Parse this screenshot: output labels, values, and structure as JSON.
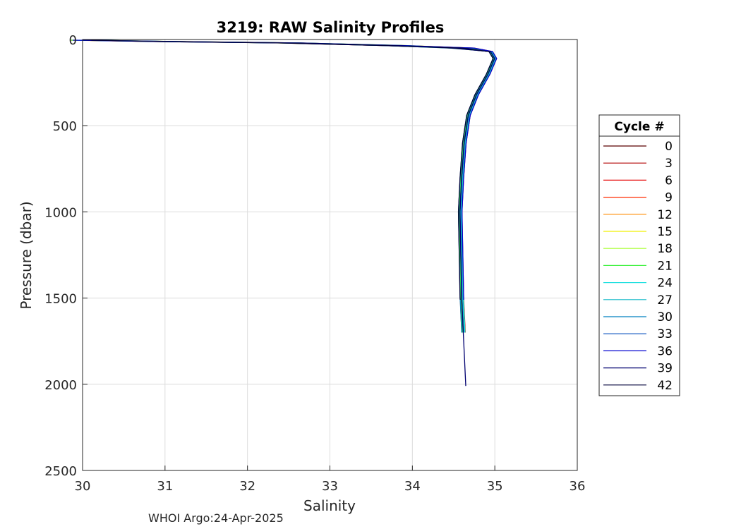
{
  "chart_data": {
    "type": "line",
    "title": "3219: RAW Salinity Profiles",
    "xlabel": "Salinity",
    "ylabel": "Pressure (dbar)",
    "xlim": [
      30,
      36
    ],
    "ylim": [
      0,
      2500
    ],
    "y_reversed": true,
    "grid": true,
    "xticks": [
      "30",
      "31",
      "32",
      "33",
      "34",
      "35",
      "36"
    ],
    "yticks": [
      "0",
      "500",
      "1000",
      "1500",
      "2000",
      "2500"
    ],
    "legend": {
      "title": "Cycle #",
      "placement": "right",
      "entries": [
        {
          "label": "0",
          "color": "#5a0000"
        },
        {
          "label": "3",
          "color": "#b30000"
        },
        {
          "label": "6",
          "color": "#e60000"
        },
        {
          "label": "9",
          "color": "#ff2a00"
        },
        {
          "label": "12",
          "color": "#ff8c00"
        },
        {
          "label": "15",
          "color": "#f0f000"
        },
        {
          "label": "18",
          "color": "#a8ff30"
        },
        {
          "label": "21",
          "color": "#3cf03c"
        },
        {
          "label": "24",
          "color": "#20e0e0"
        },
        {
          "label": "27",
          "color": "#10b8c8"
        },
        {
          "label": "30",
          "color": "#0080c0"
        },
        {
          "label": "33",
          "color": "#004cbd"
        },
        {
          "label": "36",
          "color": "#0000d0"
        },
        {
          "label": "39",
          "color": "#000070"
        },
        {
          "label": "42",
          "color": "#00003a"
        }
      ]
    },
    "profile_shape": [
      {
        "s": 30.0,
        "p": 4
      },
      {
        "s": 31.0,
        "p": 12
      },
      {
        "s": 32.5,
        "p": 20
      },
      {
        "s": 33.8,
        "p": 35
      },
      {
        "s": 34.6,
        "p": 50
      },
      {
        "s": 34.95,
        "p": 70
      },
      {
        "s": 35.0,
        "p": 110
      },
      {
        "s": 34.92,
        "p": 200
      },
      {
        "s": 34.78,
        "p": 320
      },
      {
        "s": 34.68,
        "p": 440
      },
      {
        "s": 34.63,
        "p": 600
      },
      {
        "s": 34.6,
        "p": 800
      },
      {
        "s": 34.58,
        "p": 1000
      },
      {
        "s": 34.6,
        "p": 1500
      },
      {
        "s": 34.65,
        "p": 2010
      }
    ],
    "series_extent": [
      {
        "label": "0",
        "max_p": 1700
      },
      {
        "label": "3",
        "max_p": 1700
      },
      {
        "label": "6",
        "max_p": 1700
      },
      {
        "label": "9",
        "max_p": 1700
      },
      {
        "label": "12",
        "max_p": 1700
      },
      {
        "label": "15",
        "max_p": 1700
      },
      {
        "label": "18",
        "max_p": 1700
      },
      {
        "label": "21",
        "max_p": 1700
      },
      {
        "label": "24",
        "max_p": 1700
      },
      {
        "label": "27",
        "max_p": 1700
      },
      {
        "label": "30",
        "max_p": 1700
      },
      {
        "label": "33",
        "max_p": 1700
      },
      {
        "label": "36",
        "max_p": 1510
      },
      {
        "label": "39",
        "max_p": 2010
      },
      {
        "label": "42",
        "max_p": 1510
      }
    ]
  },
  "footer": "WHOI Argo:24-Apr-2025"
}
